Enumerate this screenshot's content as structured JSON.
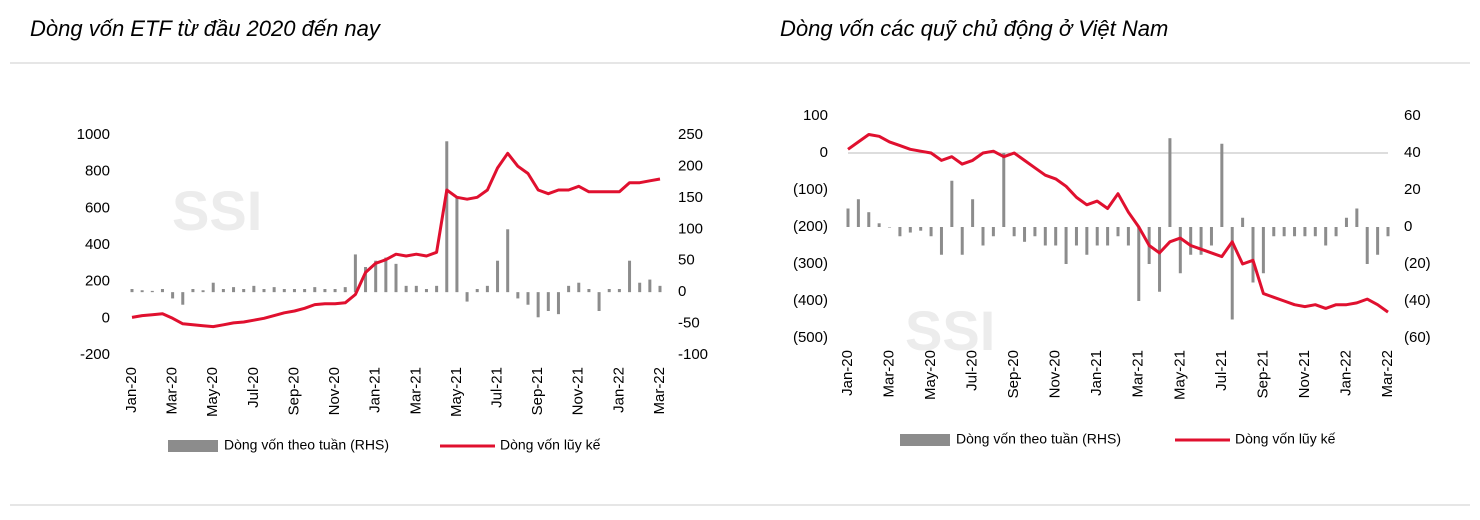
{
  "chart_data": [
    {
      "type": "combo",
      "title": "Dòng vốn ETF từ đầu 2020 đến nay",
      "watermark": "SSI",
      "categories": [
        "Jan-20",
        null,
        null,
        null,
        "Mar-20",
        null,
        null,
        null,
        "May-20",
        null,
        null,
        null,
        "Jul-20",
        null,
        null,
        null,
        "Sep-20",
        null,
        null,
        null,
        "Nov-20",
        null,
        null,
        null,
        "Jan-21",
        null,
        null,
        null,
        "Mar-21",
        null,
        null,
        null,
        "May-21",
        null,
        null,
        null,
        "Jul-21",
        null,
        null,
        null,
        "Sep-21",
        null,
        null,
        null,
        "Nov-21",
        null,
        null,
        null,
        "Jan-22",
        null,
        null,
        null,
        "Mar-22"
      ],
      "series": [
        {
          "name": "Dòng vốn theo tuần (RHS)",
          "type": "bar",
          "axis": "y2",
          "color": "#8c8c8c",
          "values": [
            5,
            3,
            2,
            5,
            -10,
            -20,
            5,
            3,
            15,
            5,
            8,
            5,
            10,
            5,
            8,
            5,
            5,
            5,
            8,
            5,
            5,
            8,
            60,
            40,
            50,
            55,
            45,
            10,
            10,
            5,
            10,
            240,
            150,
            -15,
            5,
            10,
            50,
            100,
            -10,
            -20,
            -40,
            -30,
            -35,
            10,
            15,
            5,
            -30,
            5,
            5,
            50,
            15,
            20,
            10
          ]
        },
        {
          "name": "Dòng vốn lũy kế",
          "type": "line",
          "color": "#e0102f",
          "values": [
            5,
            15,
            20,
            25,
            0,
            -30,
            -35,
            -40,
            -45,
            -35,
            -25,
            -20,
            -10,
            0,
            15,
            30,
            40,
            55,
            75,
            80,
            80,
            85,
            130,
            250,
            300,
            320,
            350,
            340,
            350,
            340,
            360,
            700,
            660,
            650,
            660,
            700,
            820,
            900,
            830,
            790,
            700,
            680,
            700,
            700,
            720,
            690,
            690,
            690,
            690,
            740,
            740,
            750,
            760
          ]
        }
      ],
      "ylim": [
        -200,
        1000
      ],
      "yticks": [
        -200,
        0,
        200,
        400,
        600,
        800,
        1000
      ],
      "y2lim": [
        -100,
        250
      ],
      "y2ticks": [
        -100,
        -50,
        0,
        50,
        100,
        150,
        200,
        250
      ]
    },
    {
      "type": "combo",
      "title": "Dòng vốn các quỹ chủ động ở Việt Nam",
      "watermark": "SSI",
      "negative_color": "#c00000",
      "zero_line": true,
      "categories": [
        "Jan-20",
        null,
        null,
        null,
        "Mar-20",
        null,
        null,
        null,
        "May-20",
        null,
        null,
        null,
        "Jul-20",
        null,
        null,
        null,
        "Sep-20",
        null,
        null,
        null,
        "Nov-20",
        null,
        null,
        null,
        "Jan-21",
        null,
        null,
        null,
        "Mar-21",
        null,
        null,
        null,
        "May-21",
        null,
        null,
        null,
        "Jul-21",
        null,
        null,
        null,
        "Sep-21",
        null,
        null,
        null,
        "Nov-21",
        null,
        null,
        null,
        "Jan-22",
        null,
        null,
        null,
        "Mar-22"
      ],
      "series": [
        {
          "name": "Dòng vốn theo tuần (RHS)",
          "type": "bar",
          "axis": "y2",
          "color": "#8c8c8c",
          "values": [
            10,
            15,
            8,
            2,
            0,
            -5,
            -3,
            -2,
            -5,
            -15,
            25,
            -15,
            15,
            -10,
            -5,
            40,
            -5,
            -8,
            -5,
            -10,
            -10,
            -20,
            -10,
            -15,
            -10,
            -10,
            -5,
            -10,
            -40,
            -20,
            -35,
            48,
            -25,
            -15,
            -15,
            -10,
            45,
            -50,
            5,
            -30,
            -25,
            -5,
            -5,
            -5,
            -5,
            -5,
            -10,
            -5,
            5,
            10,
            -20,
            -15,
            -5
          ]
        },
        {
          "name": "Dòng vốn lũy kế",
          "type": "line",
          "color": "#e0102f",
          "values": [
            10,
            30,
            50,
            45,
            30,
            20,
            10,
            5,
            0,
            -20,
            -10,
            -30,
            -20,
            0,
            5,
            -10,
            0,
            -20,
            -40,
            -60,
            -70,
            -90,
            -120,
            -140,
            -130,
            -150,
            -110,
            -160,
            -200,
            -250,
            -270,
            -240,
            -230,
            -250,
            -260,
            -270,
            -280,
            -240,
            -300,
            -290,
            -380,
            -390,
            -400,
            -410,
            -415,
            -410,
            -420,
            -410,
            -410,
            -405,
            -395,
            -410,
            -430
          ]
        }
      ],
      "ylim": [
        -500,
        100
      ],
      "yticks": [
        {
          "value": -500,
          "label": "(500)"
        },
        {
          "value": -400,
          "label": "(400)"
        },
        {
          "value": -300,
          "label": "(300)"
        },
        {
          "value": -200,
          "label": "(200)"
        },
        {
          "value": -100,
          "label": "(100)"
        },
        0,
        100
      ],
      "y2lim": [
        -60,
        60
      ],
      "y2ticks": [
        {
          "value": -60,
          "label": "(60)"
        },
        {
          "value": -40,
          "label": "(40)"
        },
        {
          "value": -20,
          "label": "(20)"
        },
        0,
        20,
        40,
        60
      ]
    }
  ]
}
